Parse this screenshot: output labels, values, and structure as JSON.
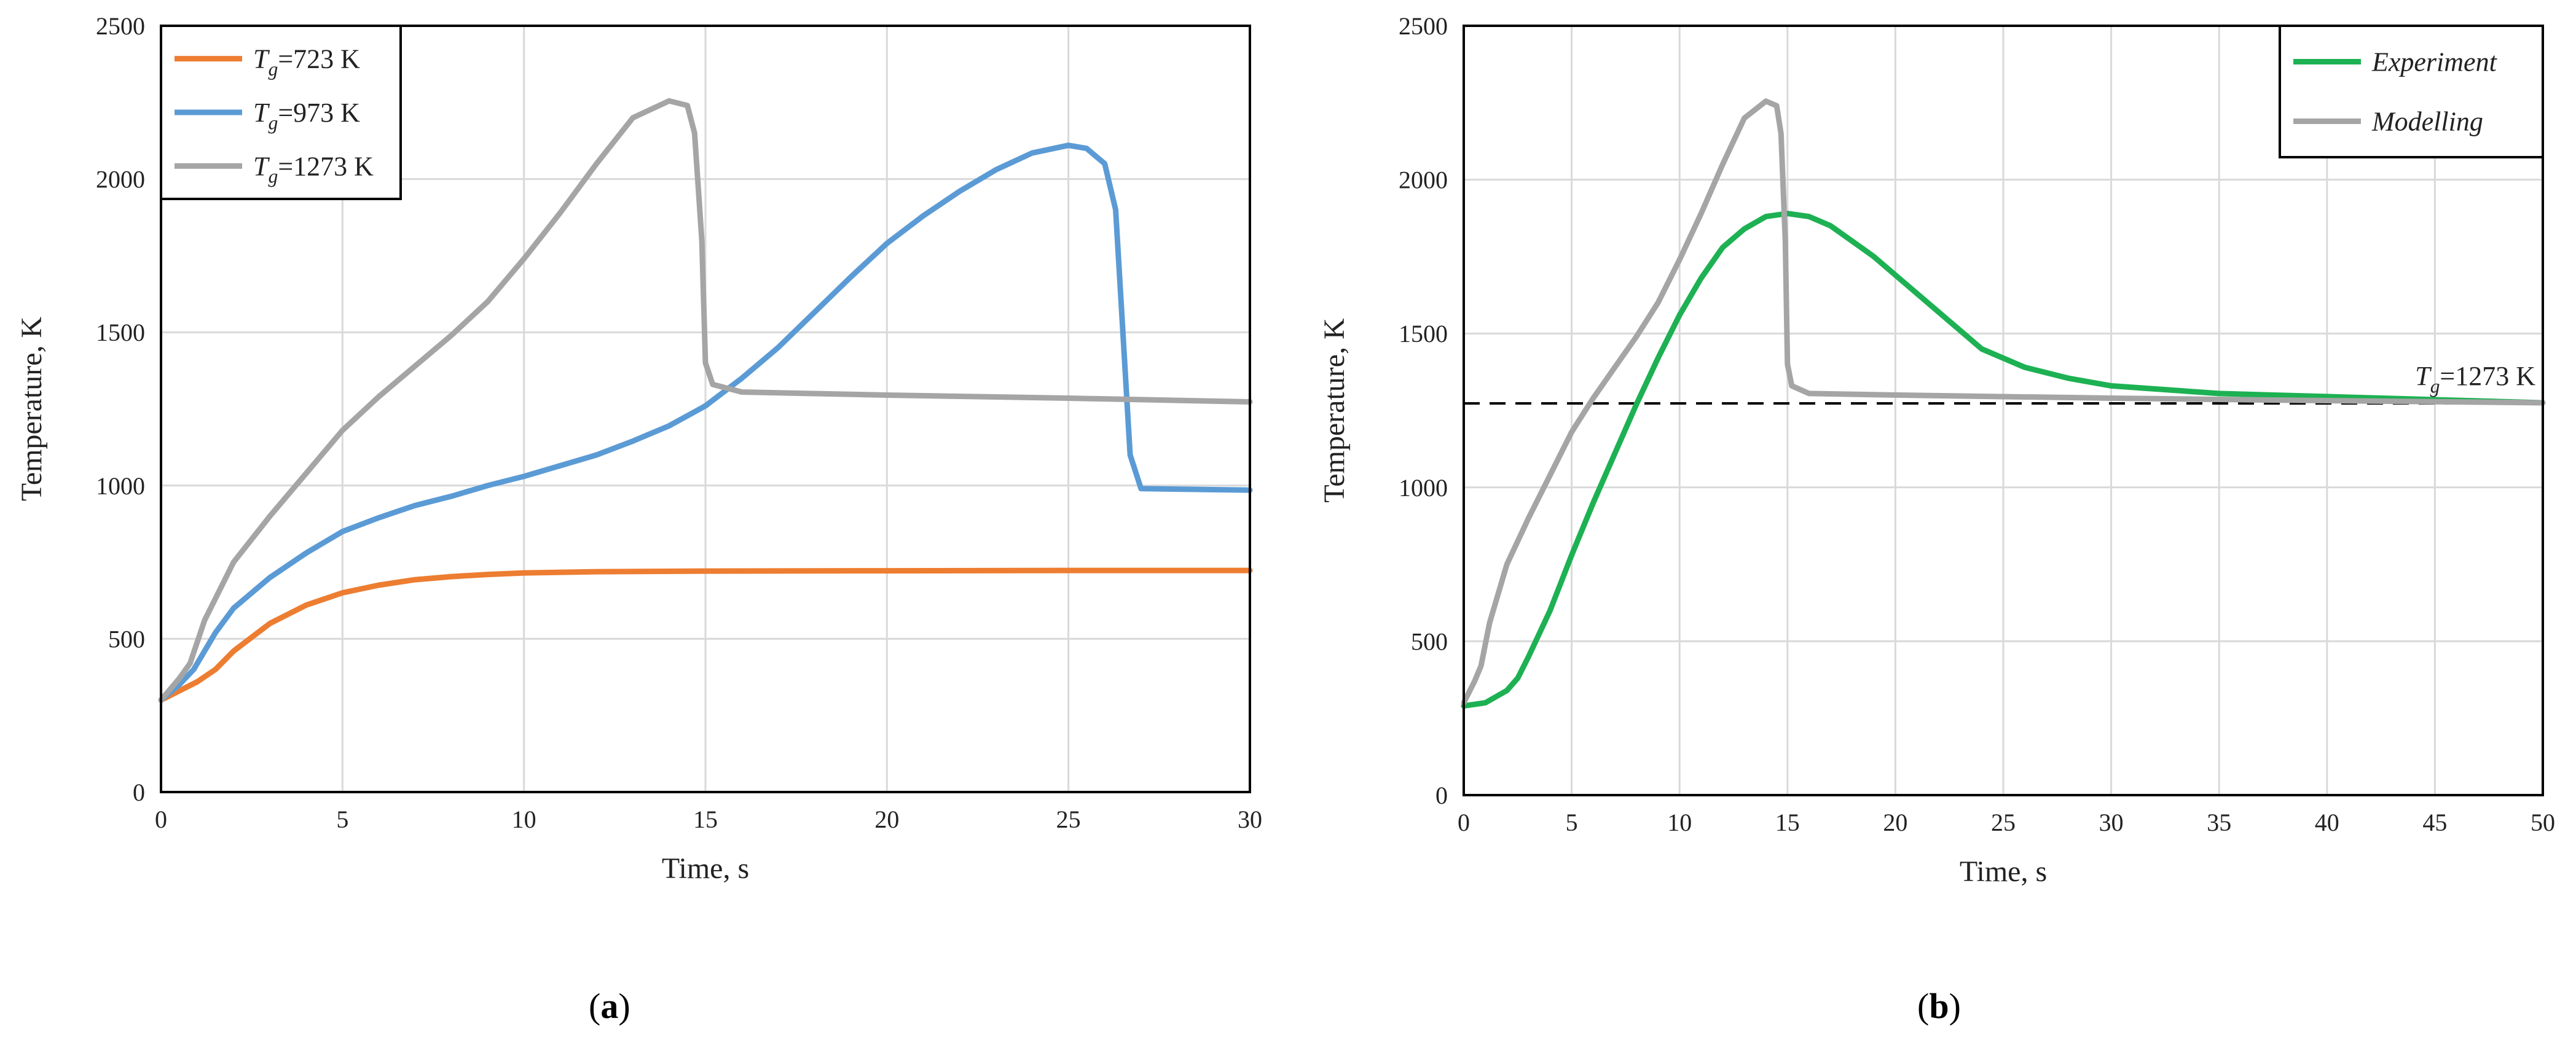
{
  "chart_data": [
    {
      "id": "a",
      "type": "line",
      "panel_label": "a",
      "xlabel": "Time, s",
      "ylabel": "Temperature, K",
      "xlim": [
        0,
        30
      ],
      "ylim": [
        0,
        2500
      ],
      "xticks": [
        0,
        5,
        10,
        15,
        20,
        25,
        30
      ],
      "yticks": [
        0,
        500,
        1000,
        1500,
        2000,
        2500
      ],
      "grid": true,
      "legend_position": "top-left",
      "series": [
        {
          "name": "Tg=723 K",
          "legend_base": "T",
          "legend_sub": "g",
          "legend_rest": "=723 K",
          "color": "#ed7d31",
          "points": [
            [
              0,
              300
            ],
            [
              0.5,
              330
            ],
            [
              1,
              360
            ],
            [
              1.5,
              400
            ],
            [
              2,
              460
            ],
            [
              3,
              550
            ],
            [
              4,
              610
            ],
            [
              5,
              650
            ],
            [
              6,
              675
            ],
            [
              7,
              693
            ],
            [
              8,
              703
            ],
            [
              9,
              710
            ],
            [
              10,
              715
            ],
            [
              12,
              719
            ],
            [
              15,
              721
            ],
            [
              20,
              722
            ],
            [
              25,
              723
            ],
            [
              30,
              723
            ]
          ]
        },
        {
          "name": "Tg=973 K",
          "legend_base": "T",
          "legend_sub": "g",
          "legend_rest": "=973 K",
          "color": "#5b9bd5",
          "points": [
            [
              0,
              300
            ],
            [
              0.5,
              350
            ],
            [
              0.9,
              400
            ],
            [
              1.5,
              520
            ],
            [
              2,
              600
            ],
            [
              3,
              700
            ],
            [
              4,
              780
            ],
            [
              5,
              850
            ],
            [
              6,
              895
            ],
            [
              7,
              935
            ],
            [
              8,
              965
            ],
            [
              9,
              1000
            ],
            [
              10,
              1030
            ],
            [
              11,
              1065
            ],
            [
              12,
              1100
            ],
            [
              13,
              1145
            ],
            [
              14,
              1195
            ],
            [
              15,
              1260
            ],
            [
              16,
              1350
            ],
            [
              17,
              1450
            ],
            [
              18,
              1565
            ],
            [
              19,
              1680
            ],
            [
              20,
              1790
            ],
            [
              21,
              1880
            ],
            [
              22,
              1960
            ],
            [
              23,
              2030
            ],
            [
              24,
              2085
            ],
            [
              25,
              2110
            ],
            [
              25.5,
              2100
            ],
            [
              26,
              2050
            ],
            [
              26.3,
              1900
            ],
            [
              26.5,
              1500
            ],
            [
              26.7,
              1100
            ],
            [
              27,
              990
            ],
            [
              30,
              985
            ]
          ]
        },
        {
          "name": "Tg=1273 K",
          "legend_base": "T",
          "legend_sub": "g",
          "legend_rest": "=1273 K",
          "color": "#a5a5a5",
          "points": [
            [
              0,
              300
            ],
            [
              0.5,
              370
            ],
            [
              0.8,
              420
            ],
            [
              1.2,
              560
            ],
            [
              2,
              750
            ],
            [
              3,
              900
            ],
            [
              4,
              1040
            ],
            [
              5,
              1180
            ],
            [
              6,
              1290
            ],
            [
              7,
              1390
            ],
            [
              8,
              1490
            ],
            [
              9,
              1600
            ],
            [
              10,
              1740
            ],
            [
              11,
              1890
            ],
            [
              12,
              2050
            ],
            [
              13,
              2200
            ],
            [
              14,
              2255
            ],
            [
              14.5,
              2240
            ],
            [
              14.7,
              2150
            ],
            [
              14.9,
              1800
            ],
            [
              15,
              1400
            ],
            [
              15.2,
              1330
            ],
            [
              16,
              1305
            ],
            [
              20,
              1295
            ],
            [
              25,
              1285
            ],
            [
              30,
              1273
            ]
          ]
        }
      ]
    },
    {
      "id": "b",
      "type": "line",
      "panel_label": "b",
      "xlabel": "Time, s",
      "ylabel": "Temperature, K",
      "xlim": [
        0,
        50
      ],
      "ylim": [
        0,
        2500
      ],
      "xticks": [
        0,
        5,
        10,
        15,
        20,
        25,
        30,
        35,
        40,
        45,
        50
      ],
      "yticks": [
        0,
        500,
        1000,
        1500,
        2000,
        2500
      ],
      "grid": true,
      "legend_position": "top-right",
      "series": [
        {
          "name": "Experiment",
          "color": "#1db153",
          "points": [
            [
              0,
              290
            ],
            [
              1,
              300
            ],
            [
              2,
              340
            ],
            [
              2.5,
              380
            ],
            [
              3,
              450
            ],
            [
              4,
              600
            ],
            [
              5,
              780
            ],
            [
              6,
              950
            ],
            [
              7,
              1110
            ],
            [
              8,
              1270
            ],
            [
              9,
              1420
            ],
            [
              10,
              1560
            ],
            [
              11,
              1680
            ],
            [
              12,
              1780
            ],
            [
              13,
              1840
            ],
            [
              14,
              1880
            ],
            [
              15,
              1890
            ],
            [
              16,
              1880
            ],
            [
              17,
              1850
            ],
            [
              18,
              1800
            ],
            [
              19,
              1750
            ],
            [
              20,
              1690
            ],
            [
              22,
              1570
            ],
            [
              24,
              1450
            ],
            [
              26,
              1390
            ],
            [
              28,
              1355
            ],
            [
              30,
              1330
            ],
            [
              35,
              1305
            ],
            [
              40,
              1295
            ],
            [
              45,
              1285
            ],
            [
              50,
              1275
            ]
          ]
        },
        {
          "name": "Modelling",
          "color": "#a5a5a5",
          "points": [
            [
              0,
              300
            ],
            [
              0.5,
              370
            ],
            [
              0.8,
              420
            ],
            [
              1.2,
              560
            ],
            [
              2,
              750
            ],
            [
              3,
              900
            ],
            [
              4,
              1040
            ],
            [
              5,
              1180
            ],
            [
              6,
              1290
            ],
            [
              7,
              1390
            ],
            [
              8,
              1490
            ],
            [
              9,
              1600
            ],
            [
              10,
              1740
            ],
            [
              11,
              1890
            ],
            [
              12,
              2050
            ],
            [
              13,
              2200
            ],
            [
              14,
              2255
            ],
            [
              14.5,
              2240
            ],
            [
              14.7,
              2150
            ],
            [
              14.9,
              1800
            ],
            [
              15,
              1400
            ],
            [
              15.2,
              1330
            ],
            [
              16,
              1305
            ],
            [
              20,
              1300
            ],
            [
              30,
              1290
            ],
            [
              40,
              1282
            ],
            [
              50,
              1275
            ]
          ]
        }
      ],
      "reference_line": {
        "y": 1273,
        "style": "dashed",
        "color": "#000000",
        "label_base": "T",
        "label_sub": "g",
        "label_rest": "=1273 K"
      }
    }
  ]
}
